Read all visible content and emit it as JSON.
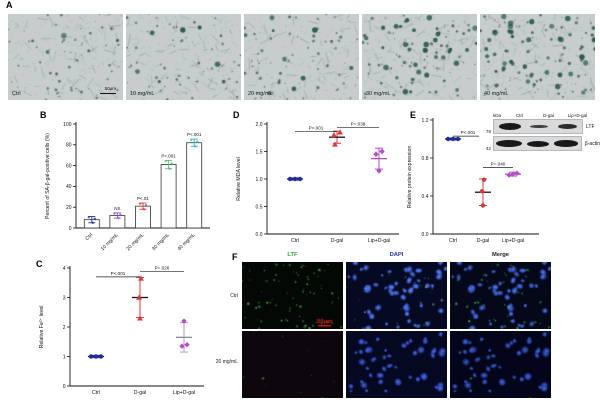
{
  "panel_a": {
    "letter": "A",
    "images": [
      {
        "label": "Ctrl",
        "scale_bar": "50μm"
      },
      {
        "label": "10 mg/mL"
      },
      {
        "label": "20 mg/mL"
      },
      {
        "label": "30 mg/mL"
      },
      {
        "label": "40 mg/mL"
      }
    ]
  },
  "charts": {
    "b": {
      "type": "bar",
      "letter": "B",
      "ylabel": "Percent of SA-β-gal-positive cells (%)",
      "ylim": [
        0,
        100
      ],
      "yticks": [
        {
          "v": 0,
          "label": "0"
        },
        {
          "v": 20,
          "label": "20"
        },
        {
          "v": 40,
          "label": "40"
        },
        {
          "v": 60,
          "label": "60"
        },
        {
          "v": 80,
          "label": "80"
        },
        {
          "v": 100,
          "label": "100"
        }
      ],
      "categories": [
        "Ctrl",
        "10 mg/mL",
        "20 mg/mL",
        "30 mg/mL",
        "40 mg/mL"
      ],
      "values": [
        8,
        12,
        21,
        61,
        82
      ],
      "errors": [
        3,
        2.5,
        3,
        4,
        3.5
      ],
      "colors": [
        "#232e9b",
        "#8f4fd1",
        "#d4393c",
        "#5cbf7a",
        "#35b8bf"
      ],
      "annotations": [
        "",
        "NS",
        "P<.01",
        "P<.001",
        "P<.001"
      ]
    },
    "c": {
      "type": "scatter",
      "letter": "C",
      "ylabel": "Relative Fe²⁺ level",
      "ylim": [
        0,
        4
      ],
      "yticks": [
        {
          "v": 0,
          "label": "0"
        },
        {
          "v": 1,
          "label": "1"
        },
        {
          "v": 2,
          "label": "2"
        },
        {
          "v": 3,
          "label": "3"
        },
        {
          "v": 4,
          "label": "4"
        }
      ],
      "categories": [
        "Ctrl",
        "D-gal",
        "Lip+D-gal"
      ],
      "series": [
        {
          "name": "Ctrl",
          "shape": "circle",
          "color": "#232e9b",
          "points": [
            1.0,
            1.0,
            1.0
          ],
          "dx": [
            -5,
            0,
            5
          ],
          "mean": 1.0,
          "err": 0.04,
          "mean_color": "#111111",
          "err_color": "#232e9b"
        },
        {
          "name": "D-gal",
          "shape": "triangle",
          "color": "#d4393c",
          "points": [
            2.3,
            3.0,
            3.65
          ],
          "dx": [
            0,
            -1,
            1
          ],
          "mean": 3.0,
          "err": 0.68,
          "mean_color": "#111111",
          "err_color": "#d4393c"
        },
        {
          "name": "Lip+D-gal",
          "shape": "diamond",
          "color": "#b04fc4",
          "points": [
            1.35,
            1.4,
            2.2
          ],
          "dx": [
            -2,
            3,
            0
          ],
          "mean": 1.65,
          "err": 0.5,
          "mean_color": "#8a8a9a",
          "err_color": "#b896c9"
        }
      ],
      "comparisons": [
        {
          "a": 0,
          "b": 1,
          "y": 3.7,
          "label": "P<.001"
        },
        {
          "a": 1,
          "b": 2,
          "y": 3.88,
          "label": "P=.026"
        }
      ]
    },
    "d": {
      "type": "scatter",
      "letter": "D",
      "ylabel": "Relative MDA level",
      "ylim": [
        0,
        2
      ],
      "yticks": [
        {
          "v": 0,
          "label": "0.0"
        },
        {
          "v": 0.5,
          "label": "0.5"
        },
        {
          "v": 1,
          "label": "1.0"
        },
        {
          "v": 1.5,
          "label": "1.5"
        },
        {
          "v": 2,
          "label": "2.0"
        }
      ],
      "categories": [
        "Ctrl",
        "D-gal",
        "Lip+D-gal"
      ],
      "series": [
        {
          "name": "Ctrl",
          "shape": "circle",
          "color": "#232e9b",
          "points": [
            1.0,
            1.0,
            1.0
          ],
          "dx": [
            -5,
            0,
            5
          ],
          "mean": 1.0,
          "err": 0.02,
          "mean_color": "#111111",
          "err_color": "#232e9b"
        },
        {
          "name": "D-gal",
          "shape": "triangle",
          "color": "#d4393c",
          "points": [
            1.63,
            1.8,
            1.85
          ],
          "dx": [
            -2,
            -3,
            3
          ],
          "mean": 1.76,
          "err": 0.11,
          "mean_color": "#111111",
          "err_color": "#d4393c"
        },
        {
          "name": "Lip+D-gal",
          "shape": "diamond",
          "color": "#b04fc4",
          "points": [
            1.15,
            1.45,
            1.5
          ],
          "dx": [
            0,
            -3,
            3
          ],
          "mean": 1.37,
          "err": 0.19,
          "mean_color": "#b04fc4",
          "err_color": "#b04fc4"
        }
      ],
      "comparisons": [
        {
          "a": 0,
          "b": 1,
          "y": 1.86,
          "label": "P<.001"
        },
        {
          "a": 1,
          "b": 2,
          "y": 1.94,
          "label": "P=.038"
        }
      ]
    },
    "e": {
      "type": "scatter",
      "letter": "E",
      "ylabel": "Relative protein expression",
      "ylim": [
        0,
        1.2
      ],
      "yticks": [
        {
          "v": 0,
          "label": "0.0"
        },
        {
          "v": 0.4,
          "label": "0.4"
        },
        {
          "v": 0.8,
          "label": "0.8"
        },
        {
          "v": 1.2,
          "label": "1.2"
        }
      ],
      "categories": [
        "Ctrl",
        "D-gal",
        "Lip+D-gal"
      ],
      "series": [
        {
          "name": "Ctrl",
          "shape": "circle",
          "color": "#232e9b",
          "points": [
            1.0,
            1.0,
            1.0
          ],
          "dx": [
            -5,
            0,
            5
          ],
          "mean": 1.0,
          "err": 0.01,
          "mean_color": "#111111",
          "err_color": "#232e9b"
        },
        {
          "name": "D-gal",
          "shape": "circle",
          "color": "#d4393c",
          "points": [
            0.3,
            0.45,
            0.57
          ],
          "dx": [
            0,
            -1,
            1
          ],
          "mean": 0.44,
          "err": 0.14,
          "mean_color": "#111111",
          "err_color": "#d4393c"
        },
        {
          "name": "Lip+D-gal",
          "shape": "diamond",
          "color": "#b04fc4",
          "points": [
            0.62,
            0.63,
            0.64
          ],
          "dx": [
            -4,
            0,
            4
          ],
          "mean": 0.63,
          "err": 0.02,
          "mean_color": "#b04fc4",
          "err_color": "#b04fc4"
        }
      ],
      "comparisons": [
        {
          "a": 0,
          "b": 1,
          "y": 1.03,
          "label": "P<.001"
        },
        {
          "a": 1,
          "b": 2,
          "y": 0.7,
          "label": "P=.040"
        }
      ]
    }
  },
  "blot": {
    "kda": "kDa",
    "lanes": [
      "Ctrl",
      "D-gal",
      "Lip+D-gal"
    ],
    "markers": [
      "78",
      "42"
    ],
    "targets": [
      "LTF",
      "β-actin"
    ]
  },
  "panel_f": {
    "letter": "F",
    "columns": [
      {
        "label": "LTF",
        "color": "#2f9e3c"
      },
      {
        "label": "DAPI",
        "color": "#2733a5"
      },
      {
        "label": "Merge",
        "color": "#1c1c1c"
      }
    ],
    "rows": [
      "Ctrl",
      "20 mg/mL"
    ],
    "scale_label": "50μm"
  }
}
